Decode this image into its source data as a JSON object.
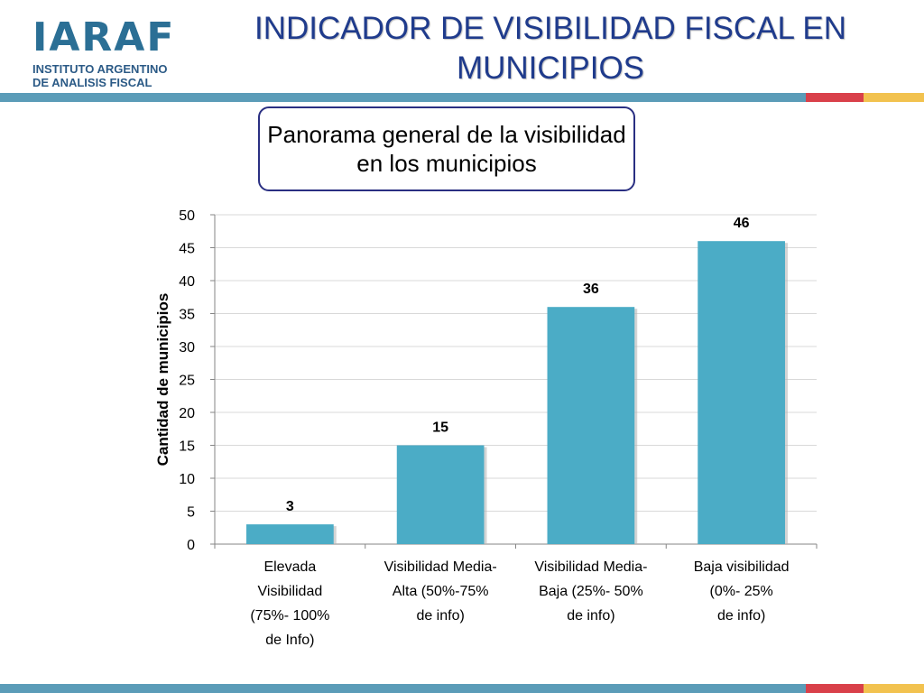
{
  "header": {
    "logo_mark": "IARAF",
    "logo_line1": "INSTITUTO ARGENTINO",
    "logo_line2": "DE ANALISIS FISCAL",
    "title": "INDICADOR DE VISIBILIDAD FISCAL EN MUNICIPIOS"
  },
  "band_colors": [
    "#5b9cb8",
    "#d9404a",
    "#f2c24f"
  ],
  "subtitle": "Panorama general de la visibilidad en los municipios",
  "chart_data": {
    "type": "bar",
    "title": "",
    "xlabel": "",
    "ylabel": "Cantidad de municipios",
    "ylim": [
      0,
      50
    ],
    "yticks": [
      0,
      5,
      10,
      15,
      20,
      25,
      30,
      35,
      40,
      45,
      50
    ],
    "grid": true,
    "legend": "none",
    "bar_color": "#4bacc6",
    "categories": [
      [
        "Elevada",
        "Visibilidad",
        "(75%- 100%",
        "de Info)"
      ],
      [
        "Visibilidad Media-",
        "Alta (50%-75%",
        "de info)"
      ],
      [
        "Visibilidad Media-",
        "Baja (25%- 50%",
        "de info)"
      ],
      [
        "Baja visibilidad",
        "(0%- 25%",
        "de info)"
      ]
    ],
    "values": [
      3,
      15,
      36,
      46
    ],
    "data_labels": [
      "3",
      "15",
      "36",
      "46"
    ]
  }
}
